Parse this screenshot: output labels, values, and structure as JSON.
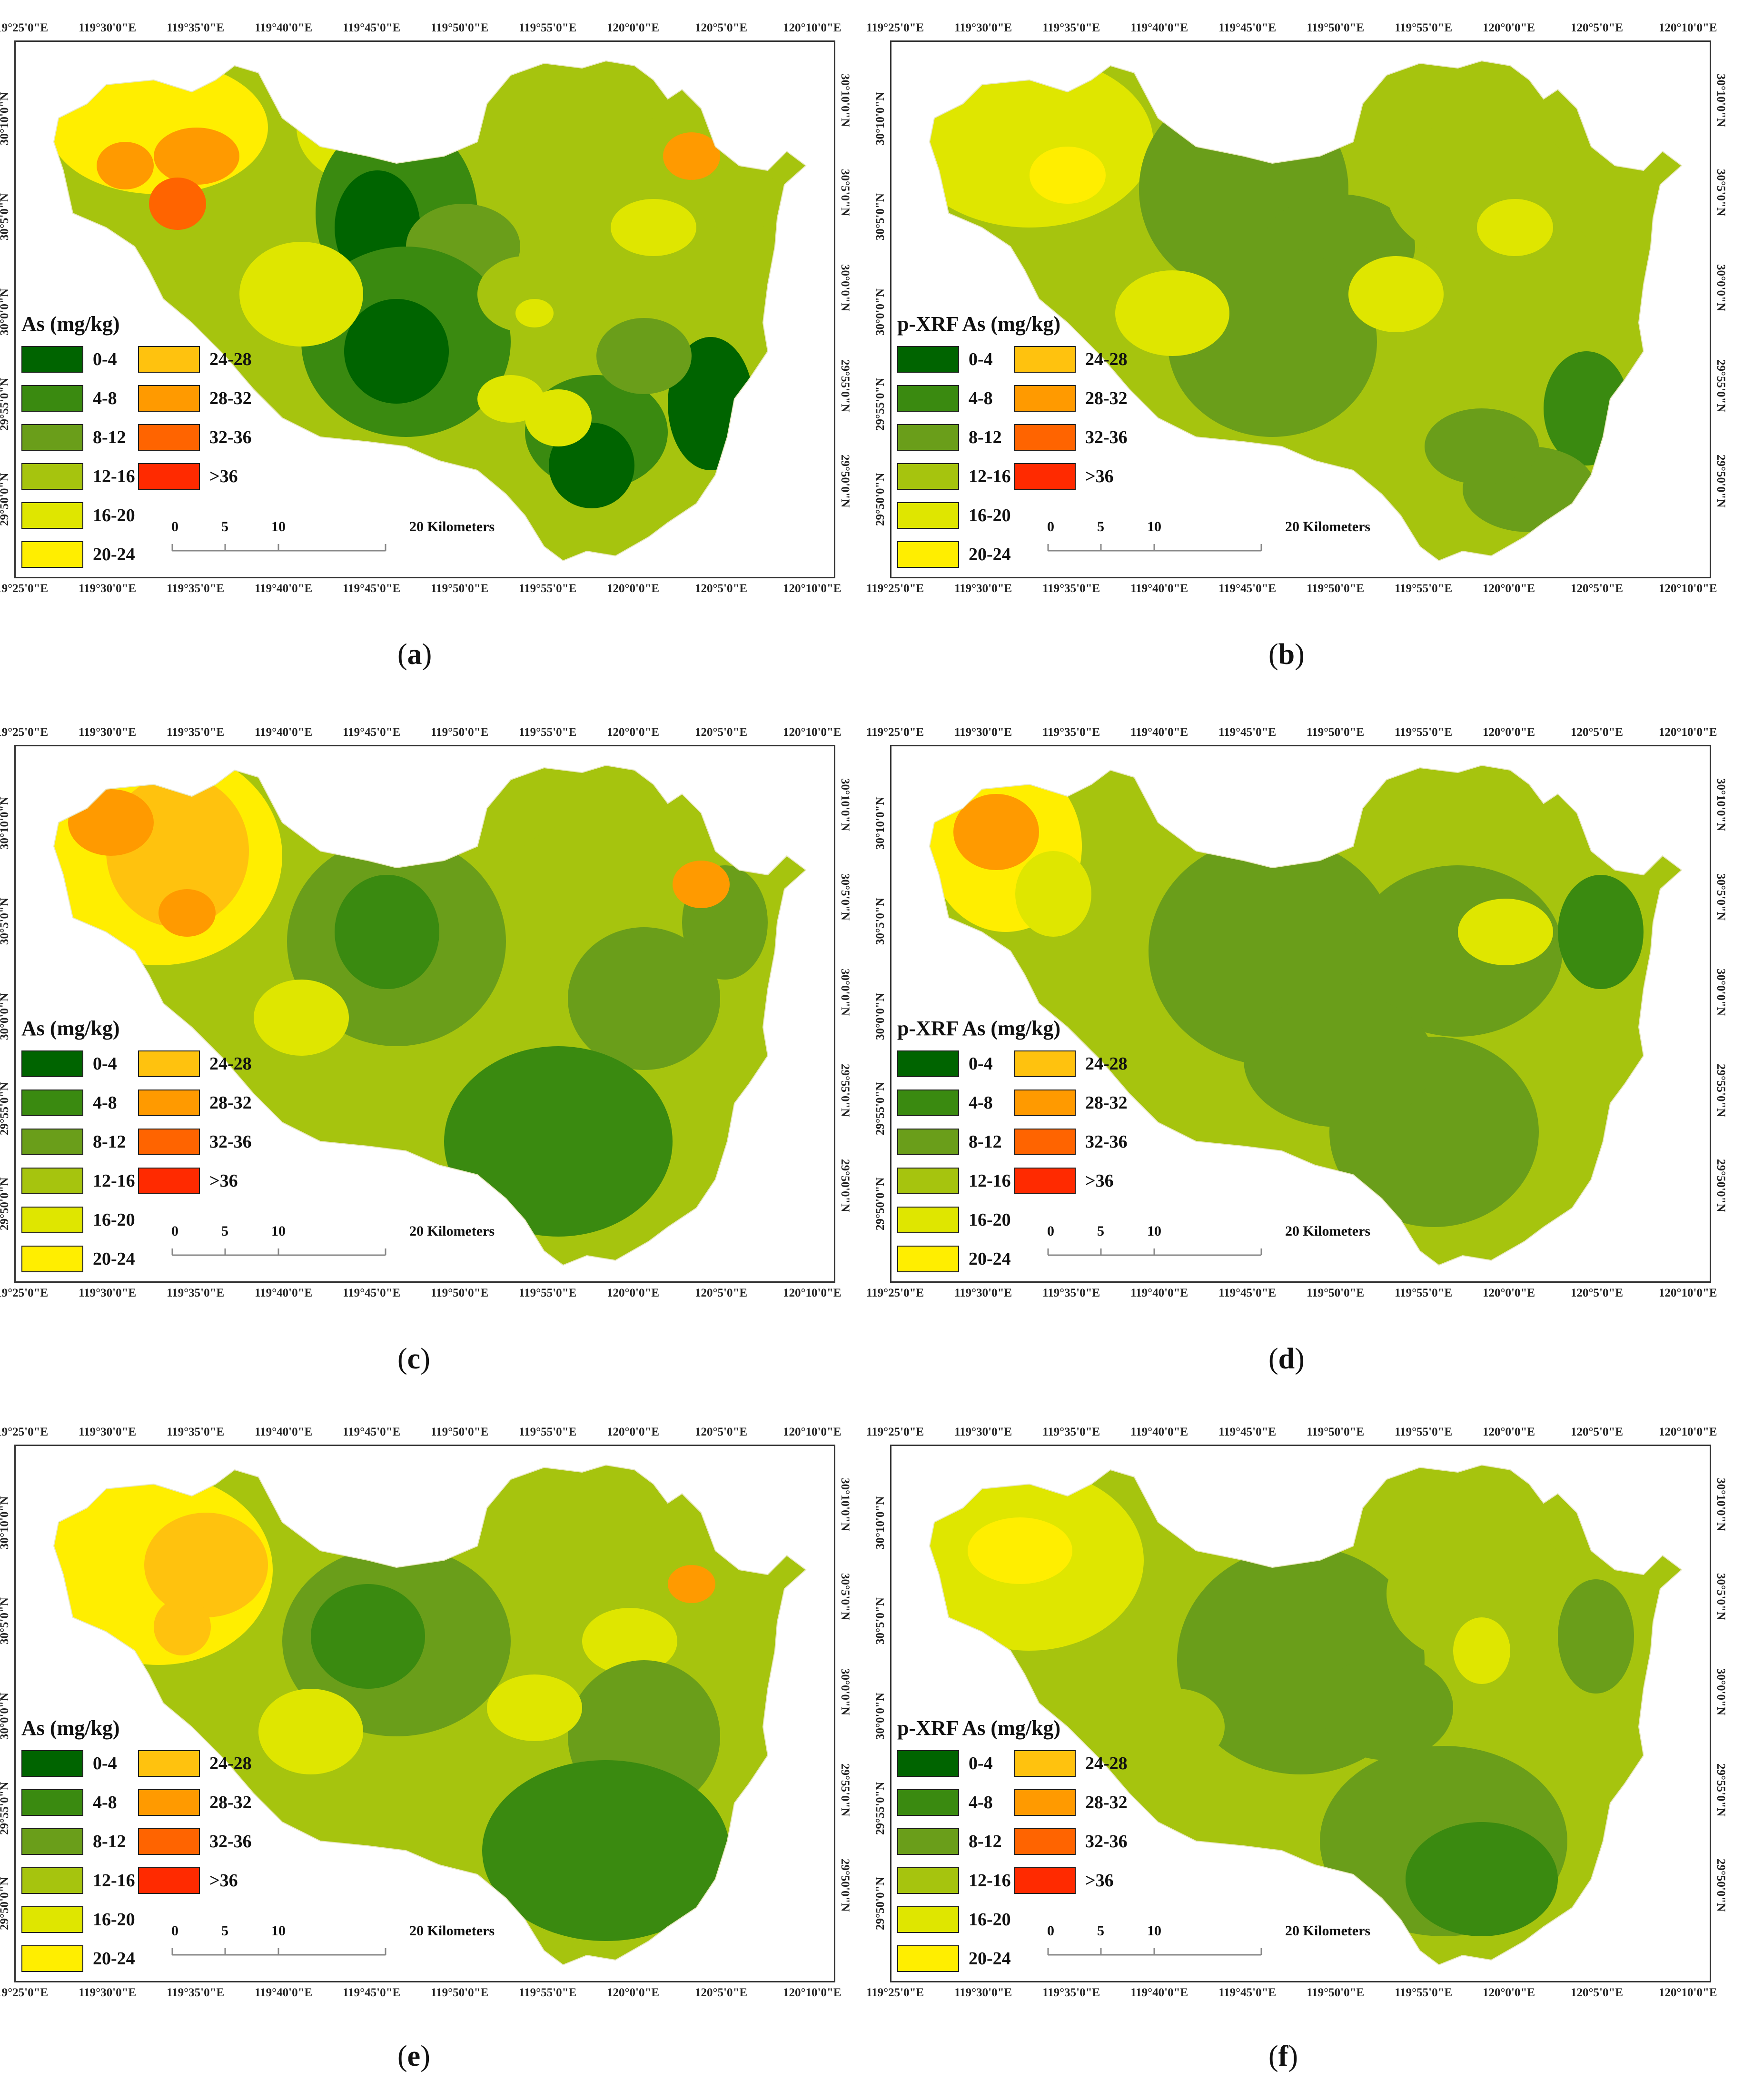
{
  "panels": [
    {
      "id": "a",
      "legend_title": "As (mg/kg)",
      "caption_letter": "a"
    },
    {
      "id": "b",
      "legend_title": "p-XRF As (mg/kg)",
      "caption_letter": "b"
    },
    {
      "id": "c",
      "legend_title": "As (mg/kg)",
      "caption_letter": "c"
    },
    {
      "id": "d",
      "legend_title": "p-XRF As (mg/kg)",
      "caption_letter": "d"
    },
    {
      "id": "e",
      "legend_title": "As (mg/kg)",
      "caption_letter": "e"
    },
    {
      "id": "f",
      "legend_title": "p-XRF As (mg/kg)",
      "caption_letter": "f"
    }
  ],
  "legend_classes": [
    {
      "label": "0-4",
      "color": "#006400"
    },
    {
      "label": "4-8",
      "color": "#3a8a10"
    },
    {
      "label": "8-12",
      "color": "#6a9e1a"
    },
    {
      "label": "12-16",
      "color": "#a6c40e"
    },
    {
      "label": "16-20",
      "color": "#dfe600"
    },
    {
      "label": "20-24",
      "color": "#ffee00"
    },
    {
      "label": "24-28",
      "color": "#ffc20e"
    },
    {
      "label": "28-32",
      "color": "#ff9a00"
    },
    {
      "label": "32-36",
      "color": "#ff6400"
    },
    {
      "label": ">36",
      "color": "#ff2a00"
    }
  ],
  "longitude_labels": [
    "119°25'0\"E",
    "119°30'0\"E",
    "119°35'0\"E",
    "119°40'0\"E",
    "119°45'0\"E",
    "119°50'0\"E",
    "119°55'0\"E",
    "120°0'0\"E",
    "120°5'0\"E",
    "120°10'0\"E"
  ],
  "latitude_labels": [
    "30°10'0\"N",
    "30°5'0\"N",
    "30°0'0\"N",
    "29°55'0\"N",
    "29°50'0\"N"
  ],
  "scale_bar": {
    "ticks": [
      "0",
      "5",
      "10"
    ],
    "label": "20 Kilometers"
  }
}
